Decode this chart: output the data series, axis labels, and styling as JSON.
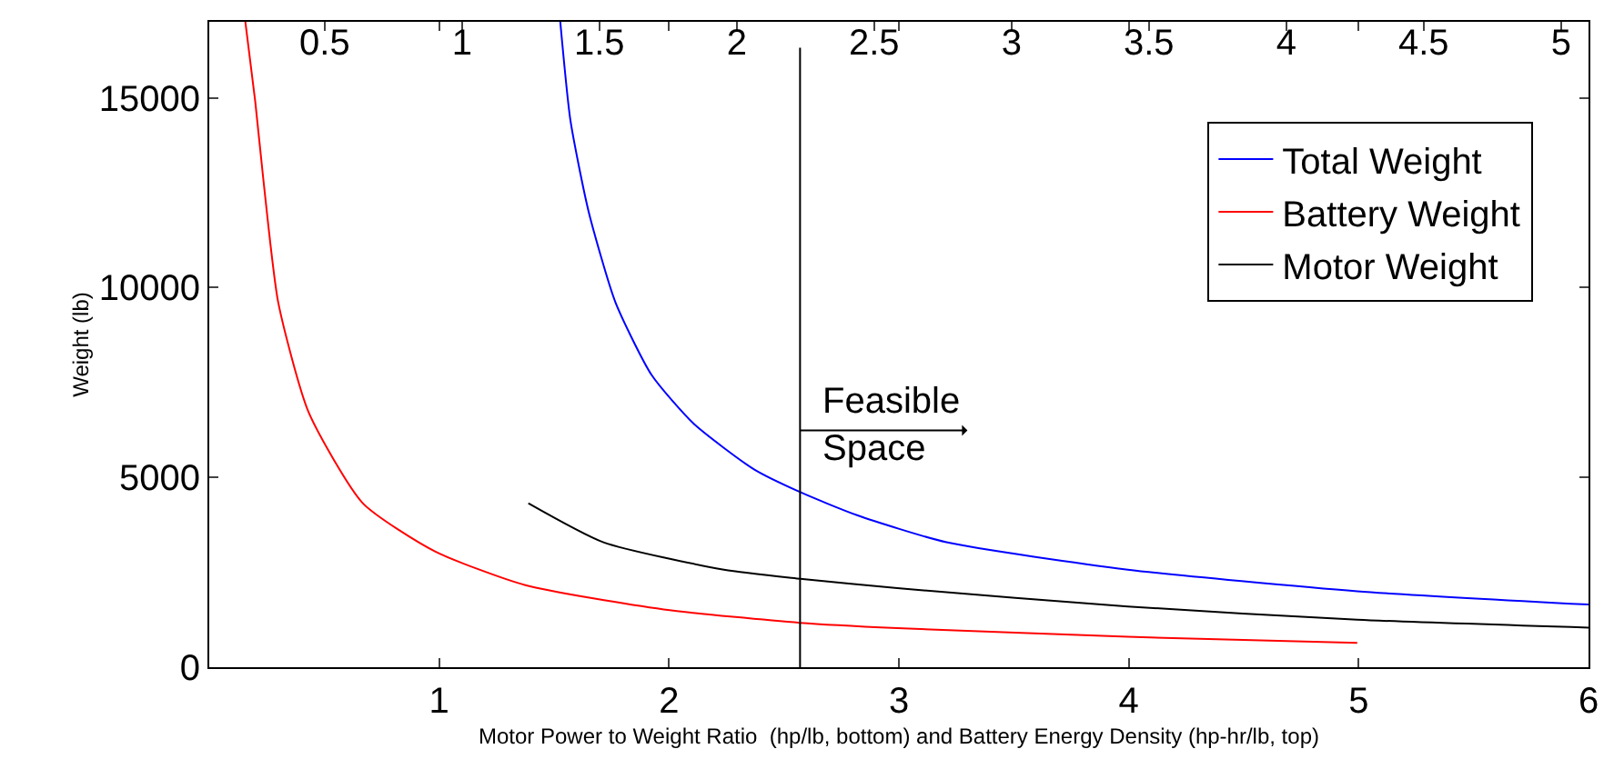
{
  "chart_data": {
    "type": "line",
    "xlabel": "Motor Power to Weight Ratio  (hp/lb, bottom) and Battery Energy Density (hp-hr/lb, top)",
    "ylabel": "Weight (lb)",
    "xlim": [
      0,
      6
    ],
    "xticks": [
      1,
      2,
      3,
      4,
      5,
      6
    ],
    "x2lim": [
      0.08,
      5.1
    ],
    "x2ticks": [
      0.5,
      1,
      1.5,
      2,
      2.5,
      3,
      3.5,
      4,
      4.5,
      5
    ],
    "ylim": [
      0,
      17000
    ],
    "yticks": [
      0,
      5000,
      10000,
      15000
    ],
    "grid": false,
    "legend": "top right",
    "marker": "none",
    "line_style": "solid",
    "series": [
      {
        "name": "Total Weight",
        "color": "#0000ff",
        "x": [
          1.527,
          1.571,
          1.65,
          1.767,
          1.925,
          2.108,
          2.37,
          2.571,
          2.815,
          3.207,
          3.996,
          4.994,
          6.0
        ],
        "values": [
          17000,
          14410,
          12010,
          9610,
          7690,
          6410,
          5210,
          4610,
          4010,
          3290,
          2570,
          2000,
          1650
        ]
      },
      {
        "name": "Battery Weight",
        "color": "#ff0000",
        "x": [
          0.157,
          0.2,
          0.236,
          0.3,
          0.432,
          0.668,
          0.982,
          1.375,
          1.977,
          2.571,
          2.993,
          3.996,
          4.994
        ],
        "values": [
          17000,
          14900,
          12810,
          9610,
          6720,
          4320,
          3050,
          2160,
          1520,
          1170,
          1030,
          800,
          640
        ]
      },
      {
        "name": "Motor Weight",
        "color": "#000000",
        "x": [
          1.388,
          1.715,
          2.239,
          2.571,
          2.993,
          3.996,
          4.994,
          6.0
        ],
        "values": [
          4320,
          3290,
          2570,
          2330,
          2080,
          1600,
          1250,
          1040
        ]
      }
    ],
    "ref_lines": [
      {
        "axis": "x",
        "value": 2.57,
        "label": null,
        "color": "#000000"
      }
    ],
    "annotations": [
      "Feasible\nSpace"
    ]
  }
}
